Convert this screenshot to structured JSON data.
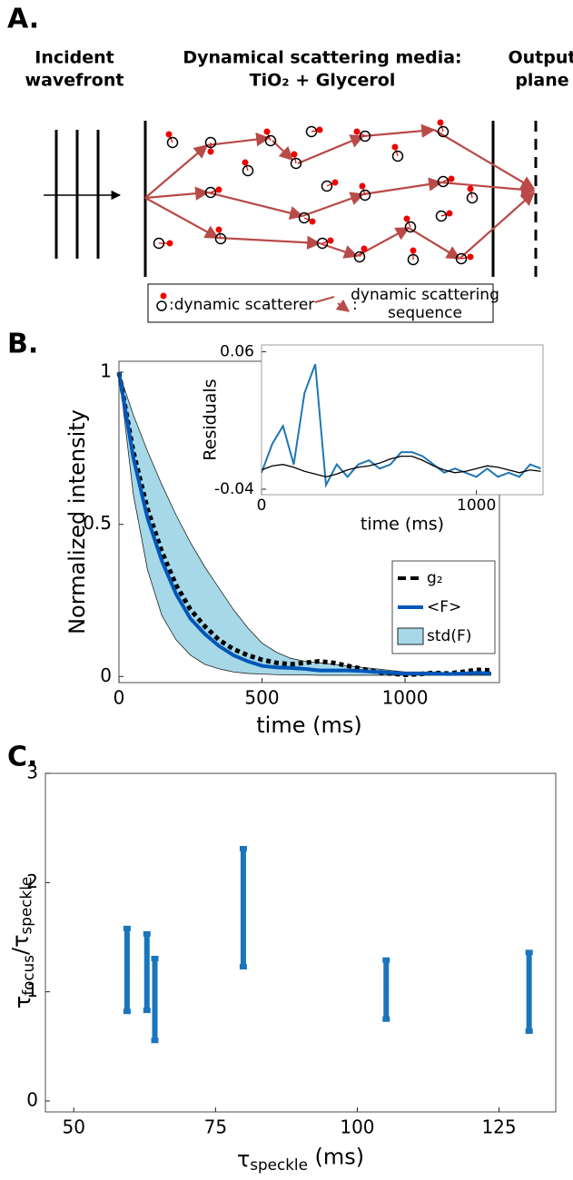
{
  "panel_labels": [
    "A.",
    "B.",
    "C."
  ],
  "diagram": {
    "left_label": [
      "Incident",
      "wavefront"
    ],
    "media_label": [
      "Dynamical scattering media:",
      "TiO₂ + Glycerol"
    ],
    "right_label": [
      "Output",
      "plane"
    ],
    "legend": {
      "scatterer": ":dynamic scatterer",
      "sequence_colon": ":",
      "sequence": [
        "dynamic scattering",
        "sequence"
      ]
    }
  },
  "chart_data": [
    {
      "type": "line",
      "ylabel": "Normalized intensity",
      "xlabel": "time (ms)",
      "x": [
        0,
        50,
        100,
        150,
        200,
        250,
        300,
        350,
        400,
        450,
        500,
        550,
        600,
        650,
        700,
        750,
        800,
        850,
        900,
        950,
        1000,
        1050,
        1100,
        1150,
        1200,
        1250,
        1300
      ],
      "xlim": [
        0,
        1330
      ],
      "xticks": [
        0,
        500,
        1000
      ],
      "ylim": [
        -0.02,
        1.036
      ],
      "yticks": [
        0,
        0.5,
        1
      ],
      "legend": "lower right",
      "series": [
        {
          "name": "g₂",
          "color": "#000000",
          "style": "dashed",
          "values": [
            1.0,
            0.74,
            0.55,
            0.41,
            0.3,
            0.22,
            0.165,
            0.12,
            0.09,
            0.07,
            0.055,
            0.045,
            0.04,
            0.045,
            0.05,
            0.045,
            0.035,
            0.025,
            0.015,
            0.01,
            0.005,
            0.008,
            0.012,
            0.01,
            0.015,
            0.022,
            0.02
          ]
        },
        {
          "name": "<F>",
          "color": "#0057b8",
          "values": [
            1.0,
            0.72,
            0.52,
            0.38,
            0.27,
            0.19,
            0.14,
            0.1,
            0.07,
            0.05,
            0.035,
            0.03,
            0.028,
            0.025,
            0.02,
            0.02,
            0.02,
            0.018,
            0.015,
            0.012,
            0.01,
            0.01,
            0.01,
            0.008,
            0.01,
            0.012,
            0.01
          ]
        },
        {
          "name": "std(F)",
          "type": "band",
          "color": "#a6d8e8",
          "upper": [
            1.0,
            0.86,
            0.74,
            0.63,
            0.53,
            0.44,
            0.36,
            0.29,
            0.22,
            0.16,
            0.11,
            0.08,
            0.06,
            0.05,
            0.045,
            0.04,
            0.035,
            0.03,
            0.025,
            0.02,
            0.015,
            0.015,
            0.015,
            0.012,
            0.012,
            0.015,
            0.015
          ],
          "lower": [
            1.0,
            0.6,
            0.35,
            0.2,
            0.12,
            0.07,
            0.04,
            0.025,
            0.015,
            0.01,
            0.008,
            0.006,
            0.005,
            0.005,
            0.004,
            0.004,
            0.004,
            0.004,
            0.004,
            0.004,
            0.004,
            0.004,
            0.004,
            0.004,
            0.004,
            0.004,
            0.004
          ]
        }
      ]
    },
    {
      "type": "line",
      "ylabel": "Residuals",
      "xlabel": "time (ms)",
      "x": [
        0,
        50,
        100,
        150,
        200,
        250,
        300,
        350,
        400,
        450,
        500,
        550,
        600,
        650,
        700,
        750,
        800,
        850,
        900,
        950,
        1000,
        1050,
        1100,
        1150,
        1200,
        1250,
        1300
      ],
      "xlim": [
        0,
        1310
      ],
      "xticks": [
        0,
        1000
      ],
      "ylim": [
        -0.044,
        0.065
      ],
      "yticks": [
        -0.04,
        0.06
      ],
      "series": [
        {
          "color": "#1f77b4",
          "values": [
            -0.028,
            -0.007,
            0.006,
            -0.022,
            0.03,
            0.051,
            -0.037,
            -0.022,
            -0.031,
            -0.022,
            -0.019,
            -0.025,
            -0.022,
            -0.013,
            -0.013,
            -0.016,
            -0.022,
            -0.028,
            -0.025,
            -0.028,
            -0.031,
            -0.025,
            -0.031,
            -0.028,
            -0.031,
            -0.022,
            -0.025
          ]
        },
        {
          "color": "#000000",
          "values": [
            -0.026,
            -0.023,
            -0.022,
            -0.024,
            -0.027,
            -0.029,
            -0.031,
            -0.029,
            -0.026,
            -0.024,
            -0.023,
            -0.021,
            -0.018,
            -0.016,
            -0.016,
            -0.019,
            -0.023,
            -0.026,
            -0.028,
            -0.027,
            -0.025,
            -0.023,
            -0.024,
            -0.026,
            -0.028,
            -0.026,
            -0.027
          ]
        }
      ]
    },
    {
      "type": "errorbar",
      "xlabel": [
        {
          "text": "τ"
        },
        {
          "text": "speckle",
          "sub": true
        },
        {
          "text": " (ms)"
        }
      ],
      "ylabel": [
        {
          "text": "τ"
        },
        {
          "text": "focus",
          "sub": true
        },
        {
          "text": "/τ"
        },
        {
          "text": "speckle",
          "sub": true
        }
      ],
      "x": [
        59.4,
        62.9,
        64.3,
        79.9,
        105.1,
        130.3
      ],
      "values": [
        1.2,
        1.18,
        0.93,
        1.77,
        1.02,
        1.0
      ],
      "errors": [
        0.38,
        0.35,
        0.375,
        0.54,
        0.27,
        0.36
      ],
      "color": "#1a75bc",
      "xlim": [
        45,
        135
      ],
      "xticks": [
        50,
        75,
        100,
        125
      ],
      "ylim": [
        -0.1,
        3
      ],
      "yticks": [
        0,
        1,
        2,
        3
      ]
    }
  ]
}
